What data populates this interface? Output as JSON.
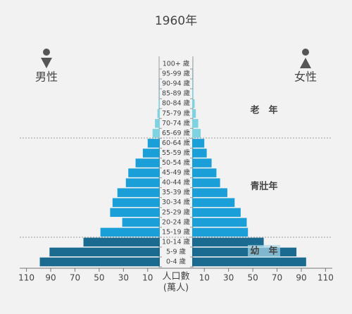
{
  "chart_data": {
    "type": "pyramid",
    "title": "1960年",
    "left_label": "男性",
    "right_label": "女性",
    "categories": [
      "100+ 歲",
      "95-99 歲",
      "90-94 歲",
      "85-89 歲",
      "80-84 歲",
      "75-79 歲",
      "70-74 歲",
      "65-69 歲",
      "60-64 歲",
      "55-59 歲",
      "50-54 歲",
      "45-49 歲",
      "40-44 歲",
      "35-39 歲",
      "30-34 歲",
      "25-29 歲",
      "20-24 歲",
      "15-19 歲",
      "10-14 歲",
      "5-9 歲",
      "0-4 歲"
    ],
    "series": [
      {
        "name": "男性",
        "side": "left",
        "values": [
          0,
          0.1,
          0.3,
          0.5,
          1,
          2,
          4,
          6,
          10,
          14,
          20,
          26,
          28,
          35,
          39,
          41,
          31,
          49,
          63,
          91,
          99
        ]
      },
      {
        "name": "女性",
        "side": "right",
        "values": [
          0.1,
          0.3,
          0.5,
          1,
          2,
          3,
          5,
          7,
          10,
          12,
          16,
          20,
          23,
          29,
          35,
          40,
          45,
          46,
          59,
          86,
          94
        ]
      }
    ],
    "bar_colors": [
      "#7fd3e0",
      "#7fd3e0",
      "#7fd3e0",
      "#7fd3e0",
      "#7fd3e0",
      "#7fd3e0",
      "#7fd3e0",
      "#7fd3e0",
      "#1a9fd8",
      "#1a9fd8",
      "#1a9fd8",
      "#1a9fd8",
      "#1a9fd8",
      "#1a9fd8",
      "#1a9fd8",
      "#1a9fd8",
      "#1a9fd8",
      "#1a9fd8",
      "#1b6a90",
      "#1b6a90",
      "#1b6a90"
    ],
    "annotations": [
      "老　年",
      "青壯年",
      "幼　年"
    ],
    "xlabel": [
      "人口數",
      "(萬人)"
    ],
    "xlim": [
      0,
      115
    ],
    "xticks": [
      10,
      30,
      50,
      70,
      90,
      110
    ]
  }
}
